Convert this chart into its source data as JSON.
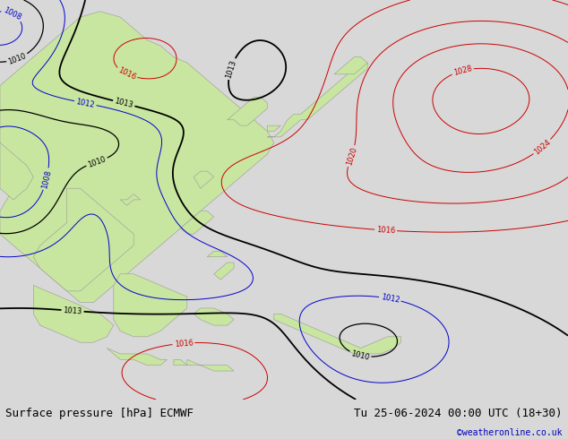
{
  "title_left": "Surface pressure [hPa] ECMWF",
  "title_right": "Tu 25-06-2024 00:00 UTC (18+30)",
  "credit": "©weatheronline.co.uk",
  "bg_color": "#d8d8d8",
  "land_color": "#c8e6a0",
  "ocean_color": "#e0e0e0",
  "text_color_left": "#000000",
  "text_color_right": "#000000",
  "credit_color": "#0000bb",
  "contour_blue": "#0000cc",
  "contour_black": "#000000",
  "contour_red": "#cc0000",
  "label_fontsize": 6,
  "bottom_fontsize": 9,
  "xlim": [
    90,
    175
  ],
  "ylim": [
    -15,
    55
  ]
}
